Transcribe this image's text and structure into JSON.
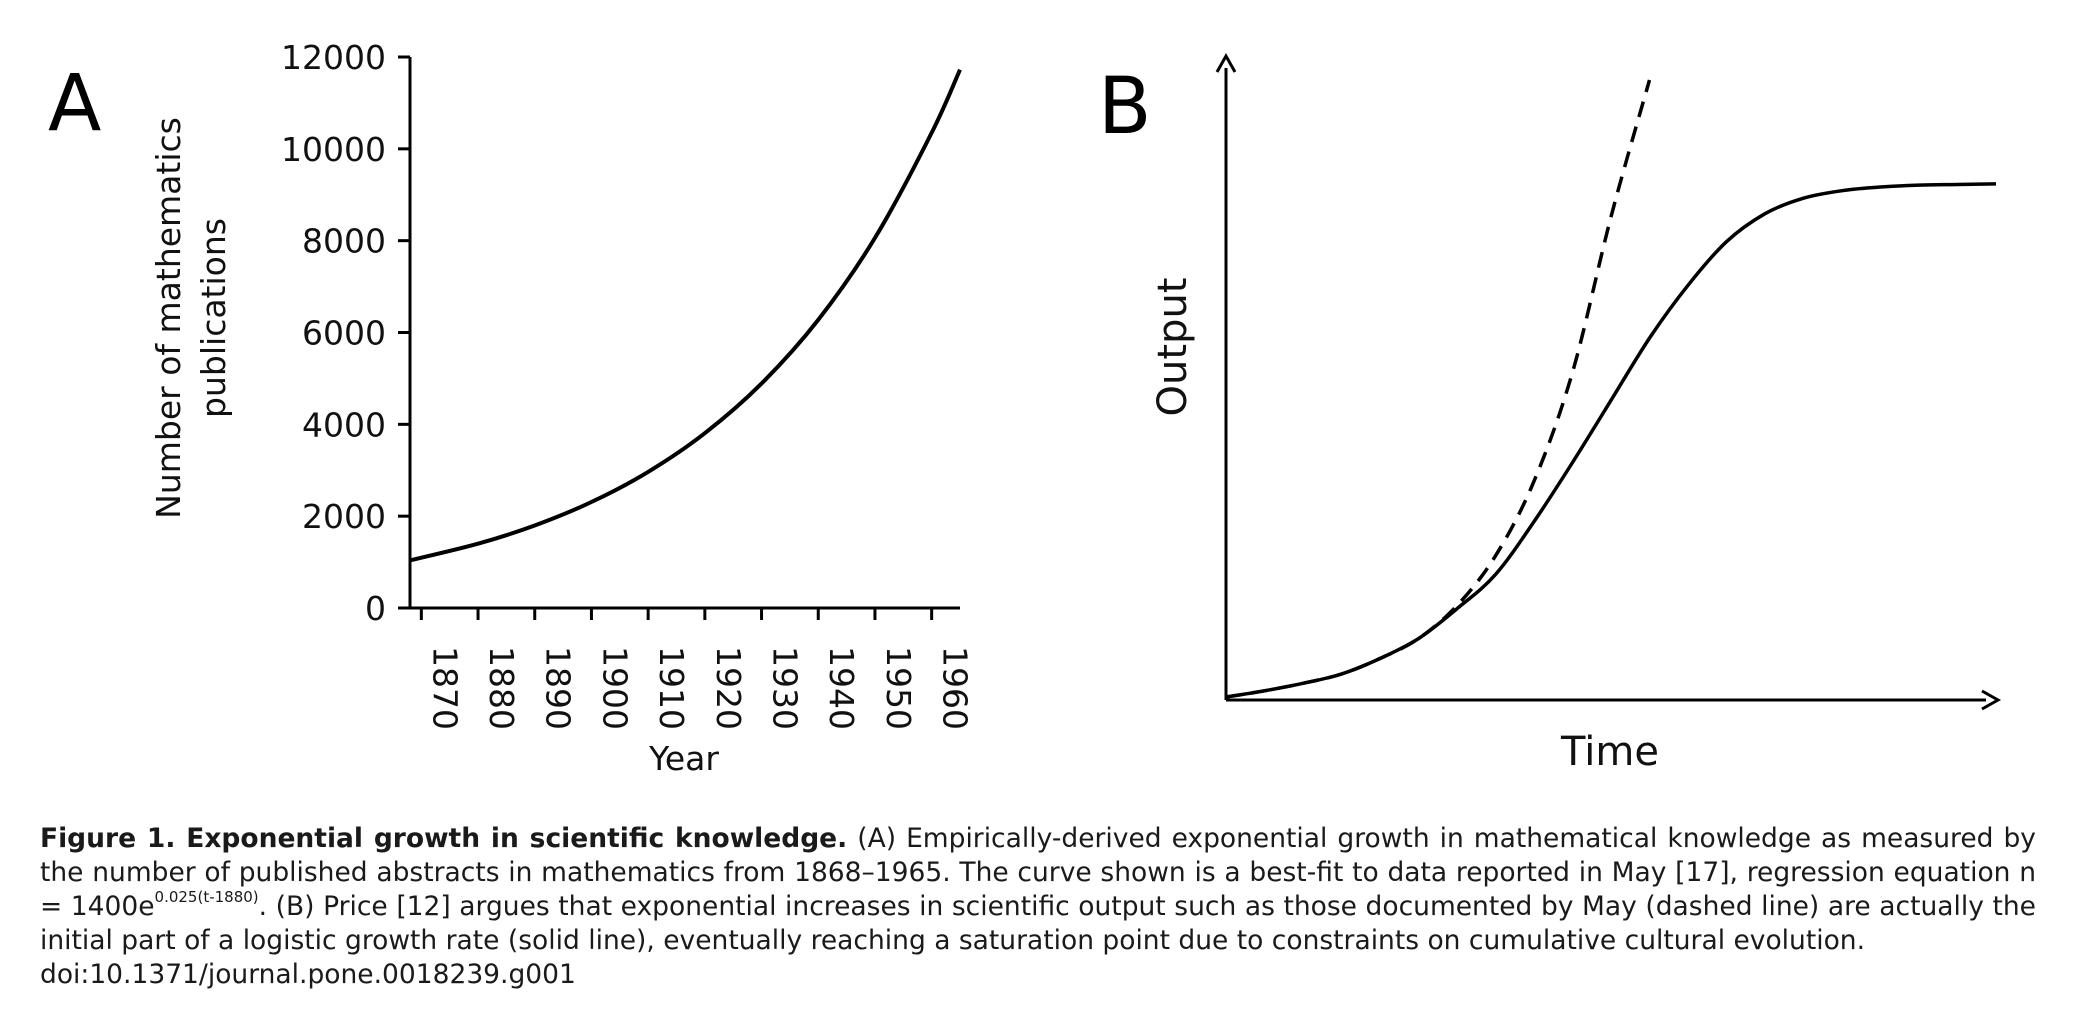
{
  "chart_data": [
    {
      "panel_label": "A",
      "type": "line",
      "xlabel": "Year",
      "ylabel_line1": "Number of mathematics",
      "ylabel_line2": "publications",
      "xlim": [
        1868,
        1965
      ],
      "ylim": [
        0,
        12000
      ],
      "x_ticks": [
        1870,
        1880,
        1890,
        1900,
        1910,
        1920,
        1930,
        1940,
        1950,
        1960
      ],
      "y_ticks": [
        0,
        2000,
        4000,
        6000,
        8000,
        10000,
        12000
      ],
      "series": [
        {
          "style": "solid",
          "x": [
            1868,
            1880,
            1890,
            1900,
            1910,
            1920,
            1930,
            1940,
            1950,
            1960,
            1965
          ],
          "y": [
            1037,
            1400,
            1797,
            2308,
            2964,
            3806,
            4887,
            6275,
            8058,
            10347,
            11724
          ]
        }
      ]
    },
    {
      "panel_label": "B",
      "type": "line",
      "xlabel": "Time",
      "ylabel": "Output",
      "xlim": [
        0,
        10
      ],
      "ylim": [
        0,
        10
      ],
      "axis_ticks": false,
      "series": [
        {
          "style": "solid",
          "x": [
            0,
            0.5,
            1,
            1.5,
            2,
            2.5,
            3,
            3.5,
            4,
            4.5,
            5,
            5.5,
            6,
            6.5,
            7,
            7.5,
            8,
            8.5,
            9,
            9.5,
            10
          ],
          "y": [
            0.08,
            0.18,
            0.3,
            0.45,
            0.7,
            1.02,
            1.5,
            2.05,
            2.9,
            3.85,
            4.85,
            5.85,
            6.7,
            7.4,
            7.85,
            8.1,
            8.22,
            8.28,
            8.31,
            8.32,
            8.33
          ]
        },
        {
          "style": "dashed",
          "x": [
            0,
            0.5,
            1,
            1.5,
            2,
            2.5,
            3,
            3.5,
            4,
            4.5,
            5,
            5.5
          ],
          "y": [
            0.08,
            0.18,
            0.3,
            0.45,
            0.7,
            1.02,
            1.55,
            2.35,
            3.55,
            5.3,
            7.8,
            10.0
          ]
        }
      ]
    }
  ],
  "caption": {
    "title": "Figure 1. Exponential growth in scientific knowledge.",
    "body_1": " (A) Empirically-derived exponential growth in mathematical knowledge as measured by the number of published abstracts in mathematics from 1868–1965. The curve shown is a best-fit to data reported in May [17], regression equation n = 1400e",
    "superscript": "0.025(t-1880)",
    "body_2": ". (B) Price [12] argues that exponential increases in scientific output such as those documented by May (dashed line) are actually the initial part of a logistic growth rate (solid line), eventually reaching a saturation point due to constraints on cumulative cultural evolution.",
    "doi": "doi:10.1371/journal.pone.0018239.g001"
  }
}
